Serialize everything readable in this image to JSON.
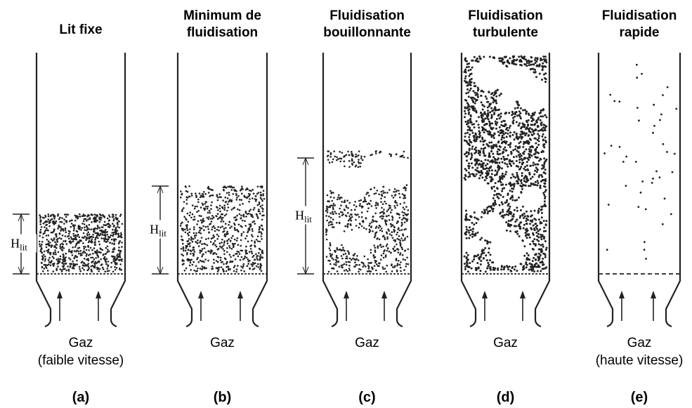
{
  "panels": [
    {
      "title": [
        "Lit fixe"
      ],
      "gas": [
        "Gaz",
        "(faible vitesse)"
      ],
      "label": "(a)",
      "hlit": {
        "main": "H",
        "sub": "lit"
      }
    },
    {
      "title": [
        "Minimum de",
        "fluidisation"
      ],
      "gas": [
        "Gaz"
      ],
      "label": "(b)",
      "hlit": {
        "main": "H",
        "sub": "lit"
      }
    },
    {
      "title": [
        "Fluidisation",
        "bouillonnante"
      ],
      "gas": [
        "Gaz"
      ],
      "label": "(c)",
      "hlit": {
        "main": "H",
        "sub": "lit"
      }
    },
    {
      "title": [
        "Fluidisation",
        "turbulente"
      ],
      "gas": [
        "Gaz"
      ],
      "label": "(d)"
    },
    {
      "title": [
        "Fluidisation",
        "rapide"
      ],
      "gas": [
        "Gaz",
        "(haute vitesse)"
      ],
      "label": "(e)"
    }
  ]
}
